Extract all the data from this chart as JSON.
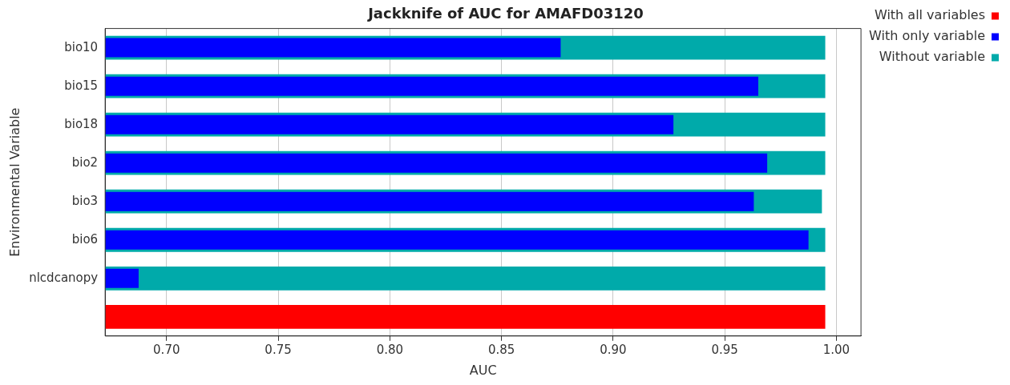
{
  "chart_data": {
    "type": "bar",
    "orientation": "horizontal",
    "title": "Jackknife of AUC for AMAFD03120",
    "xlabel": "AUC",
    "ylabel": "Environmental Variable",
    "categories": [
      "bio10",
      "bio15",
      "bio18",
      "bio2",
      "bio3",
      "bio6",
      "nlcdcanopy",
      null
    ],
    "series": [
      {
        "name": "Without variable",
        "color": "#00aaaa",
        "values": [
          0.995,
          0.995,
          0.995,
          0.995,
          0.9935,
          0.995,
          0.995,
          null
        ]
      },
      {
        "name": "With only variable",
        "color": "#0000ff",
        "values": [
          0.8765,
          0.965,
          0.927,
          0.969,
          0.963,
          0.9875,
          0.6875,
          null
        ]
      },
      {
        "name": "With all variables",
        "color": "#ff0000",
        "values": [
          null,
          null,
          null,
          null,
          null,
          null,
          null,
          0.995
        ]
      }
    ],
    "xlim": [
      0.6725,
      1.011
    ],
    "xticks": [
      {
        "value": 0.7,
        "label": "0.70"
      },
      {
        "value": 0.75,
        "label": "0.75"
      },
      {
        "value": 0.8,
        "label": "0.80"
      },
      {
        "value": 0.85,
        "label": "0.85"
      },
      {
        "value": 0.9,
        "label": "0.90"
      },
      {
        "value": 0.95,
        "label": "0.95"
      },
      {
        "value": 1.0,
        "label": "1.00"
      }
    ],
    "grid": "x",
    "legend": "top right"
  }
}
